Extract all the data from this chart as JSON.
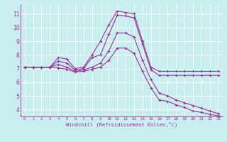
{
  "background_color": "#c8eef0",
  "line_color": "#993399",
  "marker": "+",
  "markersize": 3,
  "linewidth": 0.8,
  "grid_color": "#ffffff",
  "ylabel_ticks": [
    4,
    5,
    6,
    7,
    8,
    9,
    10,
    11
  ],
  "xlabel_ticks": [
    0,
    1,
    2,
    3,
    4,
    5,
    6,
    7,
    8,
    9,
    10,
    11,
    12,
    13,
    14,
    15,
    16,
    17,
    18,
    19,
    20,
    21,
    22,
    23
  ],
  "xlabel": "Windchill (Refroidissement éolien,°C)",
  "ylim": [
    3.5,
    11.7
  ],
  "xlim": [
    -0.5,
    23.5
  ],
  "series": [
    [
      7.1,
      7.1,
      7.1,
      7.1,
      7.8,
      7.7,
      7.0,
      7.1,
      8.0,
      9.0,
      10.2,
      11.2,
      11.1,
      11.0,
      9.0,
      7.1,
      6.8,
      6.8,
      6.8,
      6.8,
      6.8,
      6.8,
      6.8,
      6.8
    ],
    [
      7.1,
      7.1,
      7.1,
      7.1,
      7.55,
      7.4,
      6.9,
      7.0,
      7.8,
      8.0,
      9.5,
      10.9,
      10.85,
      10.7,
      8.8,
      6.9,
      6.5,
      6.5,
      6.5,
      6.5,
      6.5,
      6.5,
      6.5,
      6.5
    ],
    [
      7.1,
      7.1,
      7.1,
      7.1,
      7.3,
      7.1,
      6.8,
      6.9,
      7.1,
      7.4,
      8.3,
      9.6,
      9.6,
      9.3,
      7.6,
      6.2,
      5.2,
      5.0,
      4.7,
      4.5,
      4.3,
      4.1,
      3.9,
      3.7
    ],
    [
      7.1,
      7.1,
      7.1,
      7.1,
      7.05,
      6.95,
      6.75,
      6.8,
      6.95,
      7.1,
      7.6,
      8.5,
      8.5,
      8.1,
      6.8,
      5.6,
      4.7,
      4.6,
      4.35,
      4.15,
      3.9,
      3.8,
      3.65,
      3.55
    ]
  ]
}
